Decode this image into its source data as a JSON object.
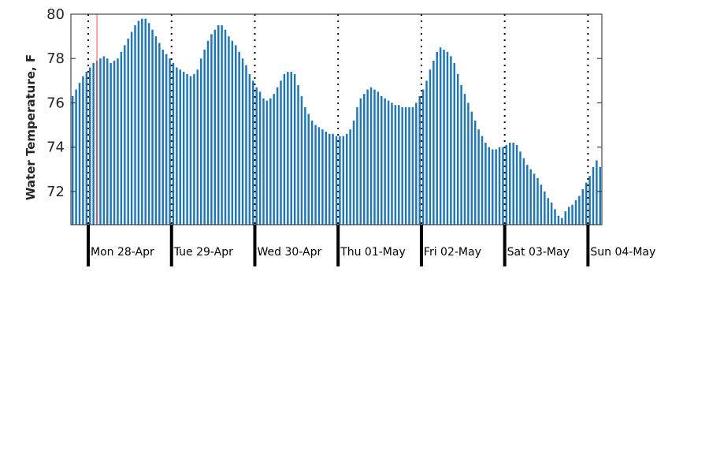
{
  "chart_data": {
    "type": "bar",
    "title": "",
    "xlabel": "",
    "ylabel": "Water Temperature, F",
    "ylim": [
      70.5,
      80
    ],
    "yticks": [
      72,
      74,
      76,
      78,
      80
    ],
    "grid": false,
    "bar_color": "#1f77b4",
    "marker_color": "#ff6666",
    "x_start": "Sun 27-Apr 19:00",
    "x_step_hours": 1,
    "now_marker_x": "Mon 28-Apr 02:00",
    "days": [
      "Mon 28-Apr",
      "Tue 29-Apr",
      "Wed 30-Apr",
      "Thu 01-May",
      "Fri 02-May",
      "Sat 03-May",
      "Sun 04-May"
    ],
    "values": [
      76.3,
      76.6,
      76.9,
      77.2,
      77.4,
      77.6,
      77.8,
      77.9,
      78.0,
      78.1,
      78.0,
      77.8,
      77.9,
      78.0,
      78.3,
      78.6,
      78.9,
      79.2,
      79.5,
      79.7,
      79.8,
      79.8,
      79.6,
      79.3,
      79.0,
      78.7,
      78.4,
      78.2,
      78.0,
      77.8,
      77.6,
      77.5,
      77.4,
      77.3,
      77.2,
      77.3,
      77.5,
      78.0,
      78.4,
      78.8,
      79.1,
      79.3,
      79.5,
      79.5,
      79.3,
      79.0,
      78.8,
      78.6,
      78.3,
      78.0,
      77.7,
      77.3,
      77.0,
      76.7,
      76.5,
      76.2,
      76.1,
      76.2,
      76.4,
      76.7,
      77.0,
      77.3,
      77.4,
      77.4,
      77.3,
      76.8,
      76.3,
      75.8,
      75.5,
      75.2,
      75.0,
      74.9,
      74.8,
      74.7,
      74.6,
      74.6,
      74.5,
      74.5,
      74.5,
      74.6,
      74.8,
      75.2,
      75.8,
      76.2,
      76.4,
      76.6,
      76.7,
      76.6,
      76.5,
      76.3,
      76.2,
      76.1,
      76.0,
      75.9,
      75.9,
      75.8,
      75.8,
      75.8,
      75.8,
      76.0,
      76.3,
      76.6,
      77.0,
      77.5,
      77.9,
      78.3,
      78.5,
      78.4,
      78.3,
      78.1,
      77.8,
      77.3,
      76.8,
      76.4,
      76.0,
      75.6,
      75.2,
      74.8,
      74.5,
      74.2,
      74.0,
      73.9,
      73.9,
      74.0,
      74.0,
      74.1,
      74.2,
      74.2,
      74.1,
      73.8,
      73.5,
      73.2,
      73.0,
      72.8,
      72.6,
      72.3,
      72.0,
      71.7,
      71.5,
      71.2,
      70.9,
      70.8,
      71.1,
      71.3,
      71.4,
      71.6,
      71.8,
      72.1,
      72.4,
      72.7,
      73.1,
      73.4,
      73.1
    ]
  }
}
